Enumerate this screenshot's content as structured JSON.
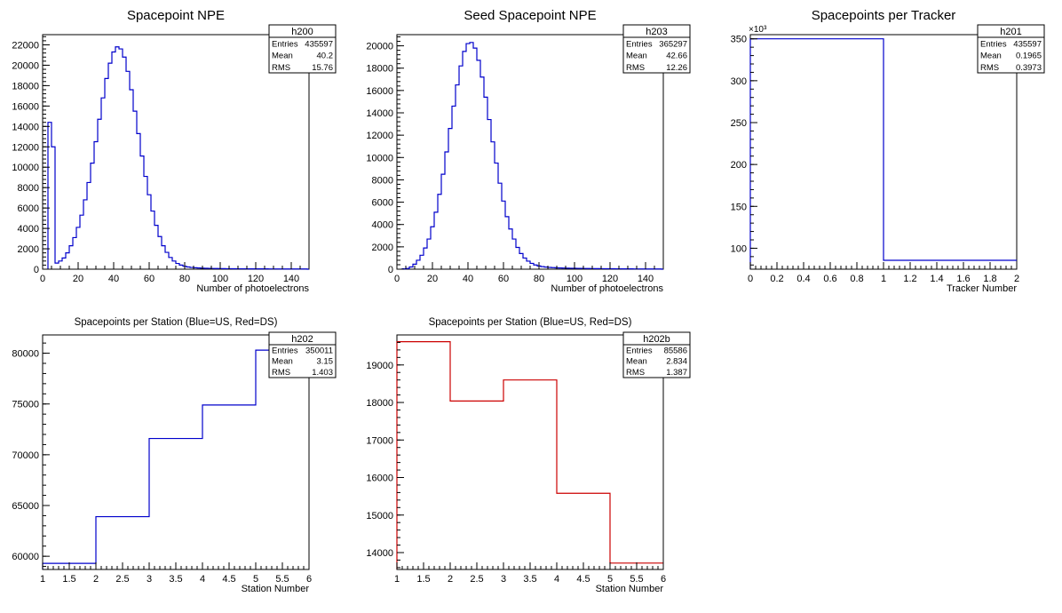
{
  "chart_data": [
    {
      "id": "h200",
      "type": "histogram",
      "title": "Spacepoint NPE",
      "xlabel": "Number of photoelectrons",
      "ylabel": "",
      "color": "#0000cc",
      "xlim": [
        0,
        150
      ],
      "ylim": [
        0,
        23000
      ],
      "xticks": [
        0,
        20,
        40,
        60,
        80,
        100,
        120,
        140
      ],
      "yticks": [
        0,
        2000,
        4000,
        6000,
        8000,
        10000,
        12000,
        14000,
        16000,
        18000,
        20000,
        22000
      ],
      "stats": {
        "name": "h200",
        "rows": [
          [
            "Entries",
            "435597"
          ],
          [
            "Mean",
            "40.2"
          ],
          [
            "RMS",
            "15.76"
          ]
        ]
      },
      "bin_edges_start": 3,
      "bin_width": 2,
      "values": [
        14400,
        12000,
        600,
        800,
        1100,
        1600,
        2300,
        3100,
        4100,
        5300,
        6800,
        8500,
        10400,
        12500,
        14700,
        16800,
        18700,
        20200,
        21300,
        21800,
        21600,
        20800,
        19400,
        17600,
        15500,
        13300,
        11100,
        9100,
        7300,
        5700,
        4300,
        3200,
        2300,
        1650,
        1150,
        800,
        560,
        400,
        290,
        220,
        170,
        140,
        120,
        100,
        90,
        80,
        70,
        65,
        60,
        55,
        50,
        50,
        45,
        40,
        40,
        40,
        35,
        35,
        30,
        30,
        30,
        30,
        25,
        25,
        25,
        20,
        20,
        20,
        20,
        20,
        20,
        20,
        20
      ]
    },
    {
      "id": "h203",
      "type": "histogram",
      "title": "Seed Spacepoint NPE",
      "xlabel": "Number of photoelectrons",
      "ylabel": "",
      "color": "#0000cc",
      "xlim": [
        0,
        150
      ],
      "ylim": [
        0,
        21000
      ],
      "xticks": [
        0,
        20,
        40,
        60,
        80,
        100,
        120,
        140
      ],
      "yticks": [
        0,
        2000,
        4000,
        6000,
        8000,
        10000,
        12000,
        14000,
        16000,
        18000,
        20000
      ],
      "stats": {
        "name": "h203",
        "rows": [
          [
            "Entries",
            "365297"
          ],
          [
            "Mean",
            "42.66"
          ],
          [
            "RMS",
            "12.26"
          ]
        ]
      },
      "bin_edges_start": 3,
      "bin_width": 2,
      "values": [
        30,
        60,
        200,
        450,
        800,
        1250,
        1900,
        2700,
        3800,
        5100,
        6700,
        8500,
        10500,
        12600,
        14600,
        16500,
        18200,
        19500,
        20200,
        20300,
        19800,
        18700,
        17200,
        15400,
        13400,
        11400,
        9500,
        7700,
        6100,
        4700,
        3600,
        2700,
        1950,
        1400,
        1000,
        720,
        520,
        380,
        290,
        230,
        190,
        160,
        140,
        120,
        110,
        100,
        90,
        85,
        80,
        75,
        70,
        65,
        60,
        55,
        50,
        50,
        45,
        45,
        40,
        40,
        35,
        35,
        30,
        30,
        30,
        25,
        25,
        25,
        20,
        20,
        20,
        20,
        20
      ]
    },
    {
      "id": "h201",
      "type": "histogram",
      "title": "Spacepoints per Tracker",
      "xlabel": "Tracker Number",
      "ylabel": "",
      "color": "#0000cc",
      "xlim": [
        0,
        2
      ],
      "ylim": [
        75,
        355
      ],
      "yunit": "×10³",
      "xticks": [
        0,
        0.2,
        0.4,
        0.6,
        0.8,
        1,
        1.2,
        1.4,
        1.6,
        1.8,
        2
      ],
      "xtick_labels": [
        "0",
        "0.2",
        "0.4",
        "0.6",
        "0.8",
        "1",
        "1.2",
        "1.4",
        "1.6",
        "1.8",
        "2"
      ],
      "yticks": [
        100,
        150,
        200,
        250,
        300,
        350
      ],
      "stats": {
        "name": "h201",
        "rows": [
          [
            "Entries",
            "435597"
          ],
          [
            "Mean",
            "0.1965"
          ],
          [
            "RMS",
            "0.3973"
          ]
        ]
      },
      "bin_edges_start": 0,
      "bin_width": 1,
      "values": [
        350.0,
        85.6
      ]
    },
    {
      "id": "h202",
      "type": "histogram",
      "title": "Spacepoints per Station (Blue=US, Red=DS)",
      "xlabel": "Station Number",
      "ylabel": "",
      "color": "#0000cc",
      "xlim": [
        1,
        6
      ],
      "ylim": [
        58700,
        81800
      ],
      "xticks": [
        1,
        1.5,
        2,
        2.5,
        3,
        3.5,
        4,
        4.5,
        5,
        5.5,
        6
      ],
      "xtick_labels": [
        "1",
        "1.5",
        "2",
        "2.5",
        "3",
        "3.5",
        "4",
        "4.5",
        "5",
        "5.5",
        "6"
      ],
      "yticks": [
        60000,
        65000,
        70000,
        75000,
        80000
      ],
      "stats": {
        "name": "h202",
        "rows": [
          [
            "Entries",
            "350011"
          ],
          [
            "Mean",
            "3.15"
          ],
          [
            "RMS",
            "1.403"
          ]
        ]
      },
      "bin_edges_start": 1,
      "bin_width": 1,
      "values": [
        59300,
        63900,
        71600,
        74900,
        80300
      ]
    },
    {
      "id": "h202b",
      "type": "histogram",
      "title": "Spacepoints per Station (Blue=US, Red=DS)",
      "xlabel": "Station Number",
      "ylabel": "",
      "color": "#cc0000",
      "xlim": [
        1,
        6
      ],
      "ylim": [
        13550,
        19800
      ],
      "xticks": [
        1,
        1.5,
        2,
        2.5,
        3,
        3.5,
        4,
        4.5,
        5,
        5.5,
        6
      ],
      "xtick_labels": [
        "1",
        "1.5",
        "2",
        "2.5",
        "3",
        "3.5",
        "4",
        "4.5",
        "5",
        "5.5",
        "6"
      ],
      "yticks": [
        14000,
        15000,
        16000,
        17000,
        18000,
        19000
      ],
      "stats": {
        "name": "h202b",
        "rows": [
          [
            "Entries",
            "85586"
          ],
          [
            "Mean",
            "2.834"
          ],
          [
            "RMS",
            "1.387"
          ]
        ]
      },
      "bin_edges_start": 1,
      "bin_width": 1,
      "values": [
        19620,
        18040,
        18600,
        15580,
        13720
      ]
    }
  ]
}
